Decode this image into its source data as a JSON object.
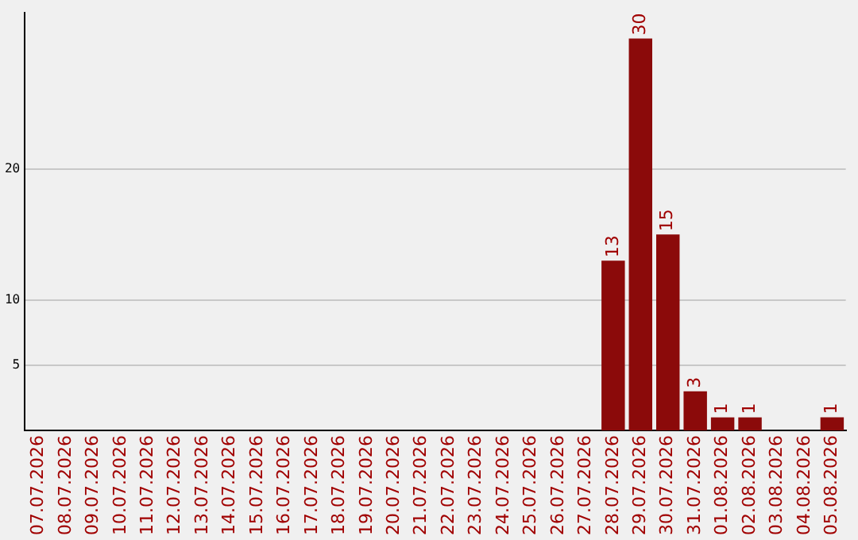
{
  "chart_data": {
    "type": "bar",
    "categories": [
      "07.07.2026",
      "08.07.2026",
      "09.07.2026",
      "10.07.2026",
      "11.07.2026",
      "12.07.2026",
      "13.07.2026",
      "14.07.2026",
      "15.07.2026",
      "16.07.2026",
      "17.07.2026",
      "18.07.2026",
      "19.07.2026",
      "20.07.2026",
      "21.07.2026",
      "22.07.2026",
      "23.07.2026",
      "24.07.2026",
      "25.07.2026",
      "26.07.2026",
      "27.07.2026",
      "28.07.2026",
      "29.07.2026",
      "30.07.2026",
      "31.07.2026",
      "01.08.2026",
      "02.08.2026",
      "03.08.2026",
      "04.08.2026",
      "05.08.2026"
    ],
    "values": [
      0,
      0,
      0,
      0,
      0,
      0,
      0,
      0,
      0,
      0,
      0,
      0,
      0,
      0,
      0,
      0,
      0,
      0,
      0,
      0,
      0,
      13,
      30,
      15,
      3,
      1,
      1,
      0,
      0,
      1
    ],
    "value_labels": [
      null,
      null,
      null,
      null,
      null,
      null,
      null,
      null,
      null,
      null,
      null,
      null,
      null,
      null,
      null,
      null,
      null,
      null,
      null,
      null,
      null,
      "13",
      "30",
      "15",
      "3",
      "1",
      "1",
      null,
      null,
      "1"
    ],
    "color": "#8b0a0a",
    "ylim": [
      0,
      32
    ],
    "yticks": [
      5,
      10,
      20
    ],
    "grid": "y",
    "legend": false
  }
}
